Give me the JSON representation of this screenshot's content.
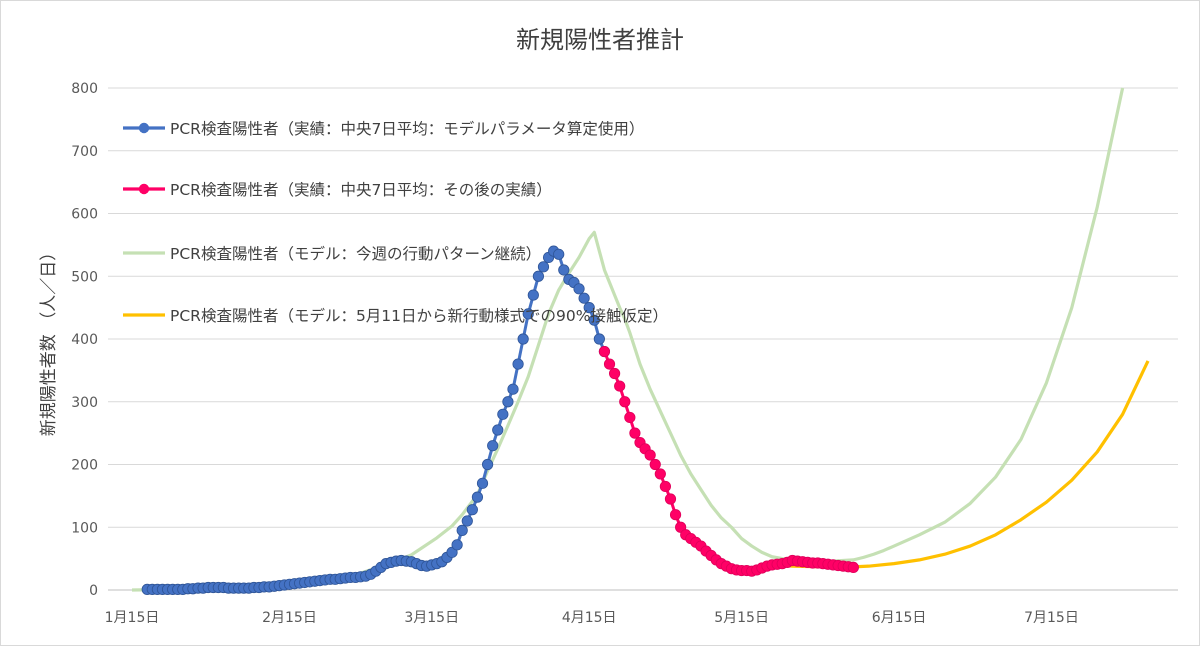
{
  "chart_data": {
    "type": "line",
    "title": "新規陽性者推計",
    "xlabel": "",
    "ylabel": "新規陽性者数 （人／日）",
    "ylim": [
      0,
      800
    ],
    "yticks": [
      "0",
      "100",
      "200",
      "300",
      "400",
      "500",
      "600",
      "700",
      "800"
    ],
    "yticks_values": [
      0,
      100,
      200,
      300,
      400,
      500,
      600,
      700,
      800
    ],
    "xticks": [
      "1月15日",
      "2月15日",
      "3月15日",
      "4月15日",
      "5月15日",
      "6月15日",
      "7月15日"
    ],
    "xticks_day": [
      0,
      31,
      59,
      90,
      120,
      151,
      181
    ],
    "grid": "horizontal",
    "legend_position": "top-left",
    "x_unit": "days since 1月15日",
    "series": [
      {
        "name": "PCR検査陽性者（実績：中央7日平均：モデルパラメータ算定使用）",
        "color": "#4472C4",
        "marker": true,
        "x": [
          3,
          4,
          5,
          6,
          7,
          8,
          9,
          10,
          11,
          12,
          13,
          14,
          15,
          16,
          17,
          18,
          19,
          20,
          21,
          22,
          23,
          24,
          25,
          26,
          27,
          28,
          29,
          30,
          31,
          32,
          33,
          34,
          35,
          36,
          37,
          38,
          39,
          40,
          41,
          42,
          43,
          44,
          45,
          46,
          47,
          48,
          49,
          50,
          51,
          52,
          53,
          54,
          55,
          56,
          57,
          58,
          59,
          60,
          61,
          62,
          63,
          64,
          65,
          66,
          67,
          68,
          69,
          70,
          71,
          72,
          73,
          74,
          75,
          76,
          77,
          78,
          79,
          80,
          81,
          82,
          83,
          84,
          85,
          86,
          87,
          88,
          89,
          90,
          91,
          92,
          93
        ],
        "values": [
          1,
          1,
          1,
          1,
          1,
          1,
          1,
          1,
          2,
          2,
          3,
          3,
          4,
          4,
          4,
          4,
          3,
          3,
          3,
          3,
          3,
          4,
          4,
          5,
          5,
          6,
          7,
          8,
          9,
          10,
          11,
          12,
          13,
          14,
          15,
          16,
          17,
          17,
          18,
          19,
          20,
          20,
          21,
          22,
          25,
          30,
          36,
          42,
          44,
          46,
          47,
          46,
          45,
          42,
          39,
          38,
          40,
          42,
          45,
          52,
          60,
          72,
          95,
          110,
          128,
          148,
          170,
          200,
          230,
          255,
          280,
          300,
          320,
          360,
          400,
          440,
          470,
          500,
          515,
          530,
          540,
          535,
          510,
          495,
          490,
          480,
          465,
          450,
          430,
          400,
          380
        ]
      },
      {
        "name": "PCR検査陽性者（実績：中央7日平均：その後の実績）",
        "color": "#FF0066",
        "marker": true,
        "x": [
          93,
          94,
          95,
          96,
          97,
          98,
          99,
          100,
          101,
          102,
          103,
          104,
          105,
          106,
          107,
          108,
          109,
          110,
          111,
          112,
          113,
          114,
          115,
          116,
          117,
          118,
          119,
          120,
          121,
          122,
          123,
          124,
          125,
          126,
          127,
          128,
          129,
          130,
          131,
          132,
          133,
          134,
          135,
          136,
          137,
          138,
          139,
          140,
          141,
          142
        ],
        "values": [
          380,
          360,
          345,
          325,
          300,
          275,
          250,
          235,
          225,
          215,
          200,
          185,
          165,
          145,
          120,
          100,
          88,
          82,
          76,
          70,
          62,
          55,
          48,
          42,
          38,
          34,
          32,
          31,
          31,
          30,
          32,
          35,
          38,
          40,
          41,
          42,
          44,
          47,
          46,
          45,
          44,
          43,
          43,
          42,
          41,
          40,
          39,
          38,
          37,
          36
        ]
      },
      {
        "name": "PCR検査陽性者（モデル：今週の行動パターン継続）",
        "color": "#C5E0B4",
        "marker": false,
        "x": [
          0,
          10,
          20,
          30,
          36,
          40,
          44,
          48,
          50,
          55,
          60,
          63,
          65,
          68,
          70,
          72,
          74,
          76,
          78,
          80,
          82,
          84,
          86,
          88,
          90,
          91,
          92,
          93,
          94,
          95,
          96,
          97,
          98,
          99,
          100,
          102,
          104,
          106,
          108,
          110,
          112,
          114,
          116,
          118,
          120,
          122,
          124,
          126,
          128,
          130,
          132,
          134,
          136,
          138,
          140,
          142,
          144,
          146,
          148,
          150,
          155,
          160,
          165,
          170,
          175,
          180,
          185,
          190,
          195
        ],
        "values": [
          0,
          1,
          2,
          5,
          10,
          16,
          24,
          35,
          40,
          56,
          83,
          102,
          120,
          152,
          190,
          225,
          262,
          300,
          340,
          390,
          440,
          478,
          505,
          530,
          560,
          570,
          540,
          510,
          490,
          470,
          450,
          432,
          410,
          385,
          360,
          320,
          285,
          250,
          215,
          185,
          160,
          135,
          115,
          100,
          82,
          70,
          60,
          53,
          50,
          48,
          47,
          46,
          46,
          46,
          47,
          48,
          52,
          57,
          63,
          70,
          88,
          108,
          138,
          180,
          240,
          330,
          450,
          610,
          800
        ]
      },
      {
        "name": "PCR検査陽性者（モデル：5月11日から新行動様式での90%接触仮定）",
        "color": "#FFC000",
        "marker": false,
        "x": [
          126,
          130,
          135,
          140,
          145,
          150,
          155,
          160,
          165,
          170,
          175,
          180,
          185,
          190,
          195,
          200
        ],
        "values": [
          40,
          38,
          37,
          36,
          38,
          42,
          48,
          57,
          70,
          88,
          112,
          140,
          175,
          220,
          280,
          365
        ]
      }
    ]
  }
}
